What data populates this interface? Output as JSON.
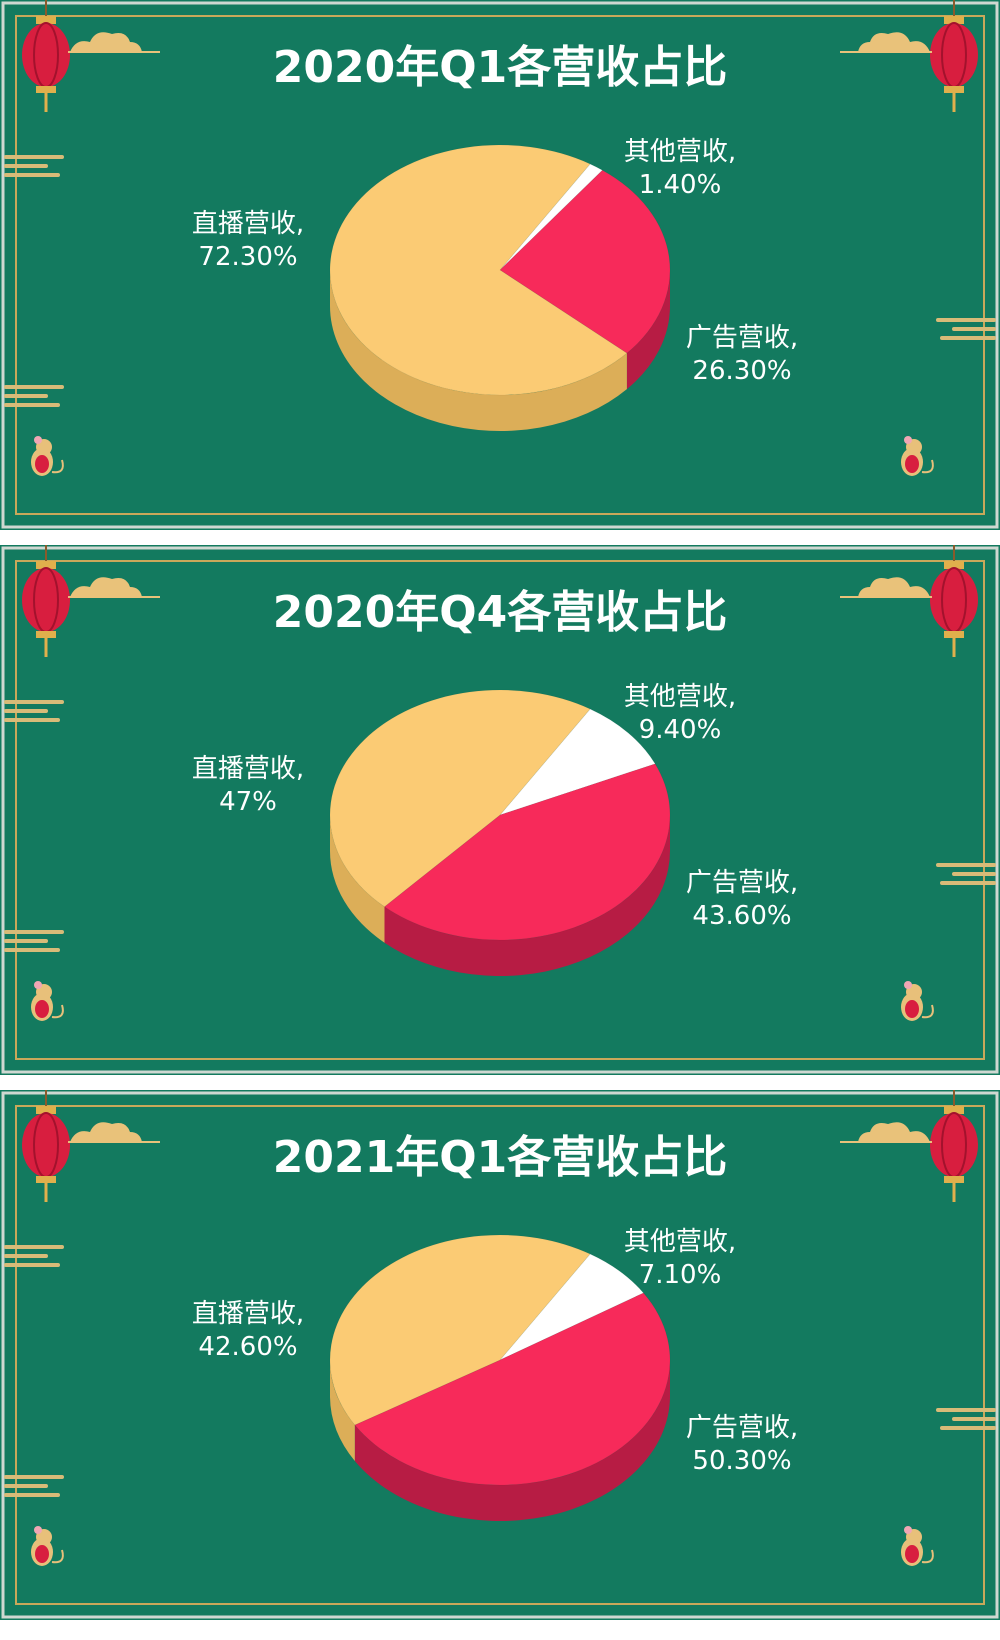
{
  "colors": {
    "background": "#137a5f",
    "border_gold": "#c9a85a",
    "live": "#fbcb74",
    "live_dark": "#dcae58",
    "ad": "#f72a5a",
    "ad_dark": "#b71c44",
    "other": "#ffffff",
    "other_dark": "#e3e3e3",
    "label_text": "#ffffff",
    "lantern": "#d81e3f",
    "cloud": "#e9c27a"
  },
  "icons": [
    "lantern-icon",
    "cloud-icon",
    "rat-icon",
    "cloud-stripe-icon"
  ],
  "chart_data": [
    {
      "type": "pie",
      "title": "2020年Q1各营收占比",
      "slices": [
        {
          "name": "其他营收",
          "value": 1.4,
          "label_name": "其他营收,",
          "label_value": "1.40%",
          "color_key": "other"
        },
        {
          "name": "广告营收",
          "value": 26.3,
          "label_name": "广告营收,",
          "label_value": "26.30%",
          "color_key": "ad"
        },
        {
          "name": "直播营收",
          "value": 72.3,
          "label_name": "直播营收,",
          "label_value": "72.30%",
          "color_key": "live"
        }
      ]
    },
    {
      "type": "pie",
      "title": "2020年Q4各营收占比",
      "slices": [
        {
          "name": "其他营收",
          "value": 9.4,
          "label_name": "其他营收,",
          "label_value": "9.40%",
          "color_key": "other"
        },
        {
          "name": "广告营收",
          "value": 43.6,
          "label_name": "广告营收,",
          "label_value": "43.60%",
          "color_key": "ad"
        },
        {
          "name": "直播营收",
          "value": 47,
          "label_name": "直播营收,",
          "label_value": "47%",
          "color_key": "live"
        }
      ]
    },
    {
      "type": "pie",
      "title": "2021年Q1各营收占比",
      "slices": [
        {
          "name": "其他营收",
          "value": 7.1,
          "label_name": "其他营收,",
          "label_value": "7.10%",
          "color_key": "other"
        },
        {
          "name": "广告营收",
          "value": 50.3,
          "label_name": "广告营收,",
          "label_value": "50.30%",
          "color_key": "ad"
        },
        {
          "name": "直播营收",
          "value": 42.6,
          "label_name": "直播营收,",
          "label_value": "42.60%",
          "color_key": "live"
        }
      ]
    }
  ]
}
